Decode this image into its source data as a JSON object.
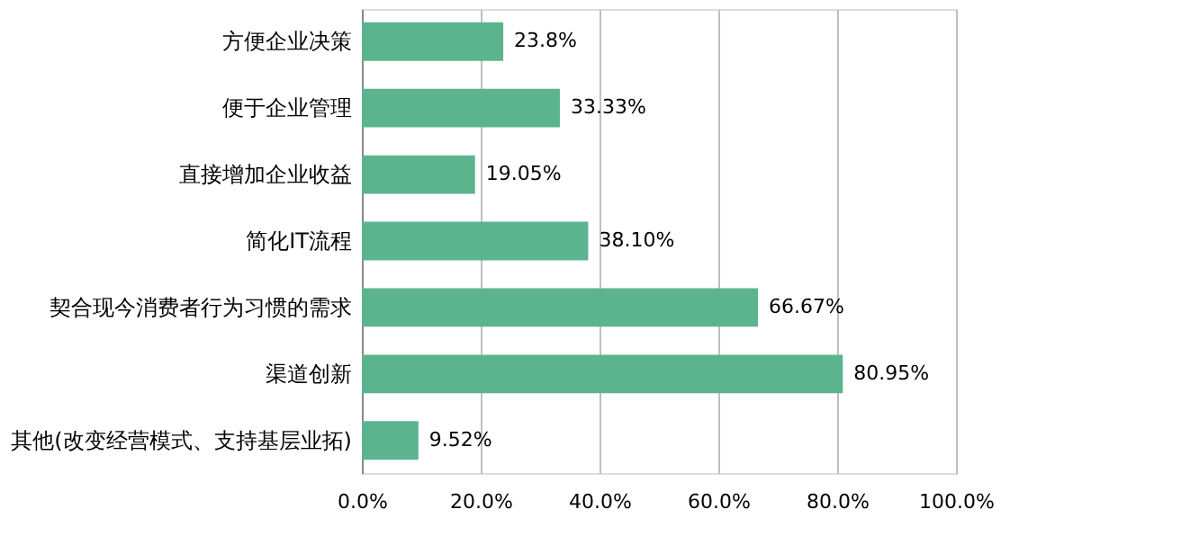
{
  "chart_data": {
    "type": "bar",
    "orientation": "horizontal",
    "categories": [
      "方便企业决策",
      "便于企业管理",
      "直接增加企业收益",
      "简化IT流程",
      "契合现今消费者行为习惯的需求",
      "渠道创新",
      "其他(改变经营模式、支持基层业拓)"
    ],
    "values": [
      23.8,
      33.33,
      19.05,
      38.1,
      66.67,
      80.95,
      9.52
    ],
    "value_labels": [
      "23.8%",
      "33.33%",
      "19.05%",
      "38.10%",
      "66.67%",
      "80.95%",
      "9.52%"
    ],
    "color": "#5cb48e",
    "xlim": [
      0,
      100
    ],
    "xticks": [
      {
        "value": 0,
        "label": "0.0%"
      },
      {
        "value": 20,
        "label": "20.0%"
      },
      {
        "value": 40,
        "label": "40.0%"
      },
      {
        "value": 60,
        "label": "60.0%"
      },
      {
        "value": 80,
        "label": "80.0%"
      },
      {
        "value": 100,
        "label": "100.0%"
      }
    ],
    "grid": "x"
  }
}
